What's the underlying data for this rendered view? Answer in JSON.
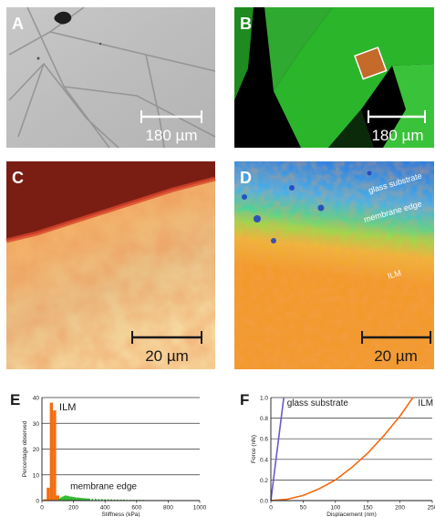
{
  "panels": {
    "A": {
      "letter": "A",
      "scalebar": "180 µm"
    },
    "B": {
      "letter": "B",
      "scalebar": "180 µm"
    },
    "C": {
      "letter": "C",
      "scalebar": "20 µm"
    },
    "D": {
      "letter": "D",
      "scalebar": "20 µm",
      "labels": [
        "glass substrate",
        "membrane edge",
        "ILM"
      ]
    },
    "E": {
      "letter": "E"
    },
    "F": {
      "letter": "F"
    }
  },
  "colors": {
    "ilm_bars": "#f26d12",
    "membrane_edge": "#2db82d",
    "glass_curve": "#6a5acd",
    "ilm_curve": "#f26d12",
    "fluorescence": "#2fbf2f",
    "scalebar_light": "#ffffff",
    "scalebar_dark": "#1a1a1a"
  },
  "chart_data": [
    {
      "type": "bar",
      "panel": "E",
      "xlabel": "Stiffness (kPa)",
      "ylabel": "Percentage observed",
      "xlim": [
        0,
        1000
      ],
      "ylim": [
        0,
        40
      ],
      "xticks": [
        0,
        200,
        400,
        600,
        800,
        1000
      ],
      "yticks": [
        0,
        10,
        20,
        30,
        40
      ],
      "grid": true,
      "annotations": [
        "ILM",
        "membrane edge"
      ],
      "series": [
        {
          "bin_width": 20,
          "x": [
            20,
            40,
            60,
            80,
            100
          ],
          "values": [
            0.5,
            5,
            38,
            35,
            2
          ]
        },
        {
          "bin_width": 10,
          "x": [
            110,
            120,
            130,
            140,
            150,
            160,
            170,
            180,
            190,
            200,
            210,
            220,
            230,
            240,
            250,
            260,
            270,
            280,
            290,
            300,
            320,
            340,
            360,
            380,
            400,
            420,
            440,
            460,
            480,
            500,
            520,
            540,
            560,
            580,
            600,
            620,
            640,
            660,
            680,
            700,
            720,
            740,
            760,
            780,
            800,
            820,
            840,
            860,
            880,
            900
          ],
          "values": [
            0.8,
            1.2,
            1.5,
            1.8,
            2.0,
            1.9,
            1.7,
            1.6,
            1.5,
            1.4,
            1.3,
            1.2,
            1.2,
            1.1,
            1.0,
            1.0,
            0.9,
            0.9,
            0.8,
            0.8,
            0.7,
            0.7,
            0.6,
            0.6,
            0.5,
            0.5,
            0.5,
            0.4,
            0.4,
            0.4,
            0.4,
            0.3,
            0.3,
            0.3,
            0.3,
            0.3,
            0.3,
            0.2,
            0.2,
            0.2,
            0.2,
            0.2,
            0.2,
            0.2,
            0.2,
            0.2,
            0.1,
            0.1,
            0.1,
            0.1
          ]
        }
      ]
    },
    {
      "type": "line",
      "panel": "F",
      "xlabel": "Displacement (nm)",
      "ylabel": "Force (nN)",
      "xlim": [
        0,
        250
      ],
      "ylim": [
        0,
        1.0
      ],
      "xticks": [
        0,
        50,
        100,
        150,
        200,
        250
      ],
      "yticks": [
        "0.0",
        "0.2",
        "0.4",
        "0.6",
        "0.8",
        "1.0"
      ],
      "grid": true,
      "series": [
        {
          "name": "glass substrate",
          "x": [
            0,
            5,
            10,
            15,
            20
          ],
          "y": [
            0,
            0.25,
            0.5,
            0.75,
            1.0
          ]
        },
        {
          "name": "ILM",
          "x": [
            0,
            25,
            50,
            75,
            100,
            125,
            150,
            175,
            200,
            220
          ],
          "y": [
            0,
            0.013,
            0.05,
            0.115,
            0.2,
            0.32,
            0.46,
            0.63,
            0.82,
            1.0
          ]
        }
      ]
    }
  ]
}
